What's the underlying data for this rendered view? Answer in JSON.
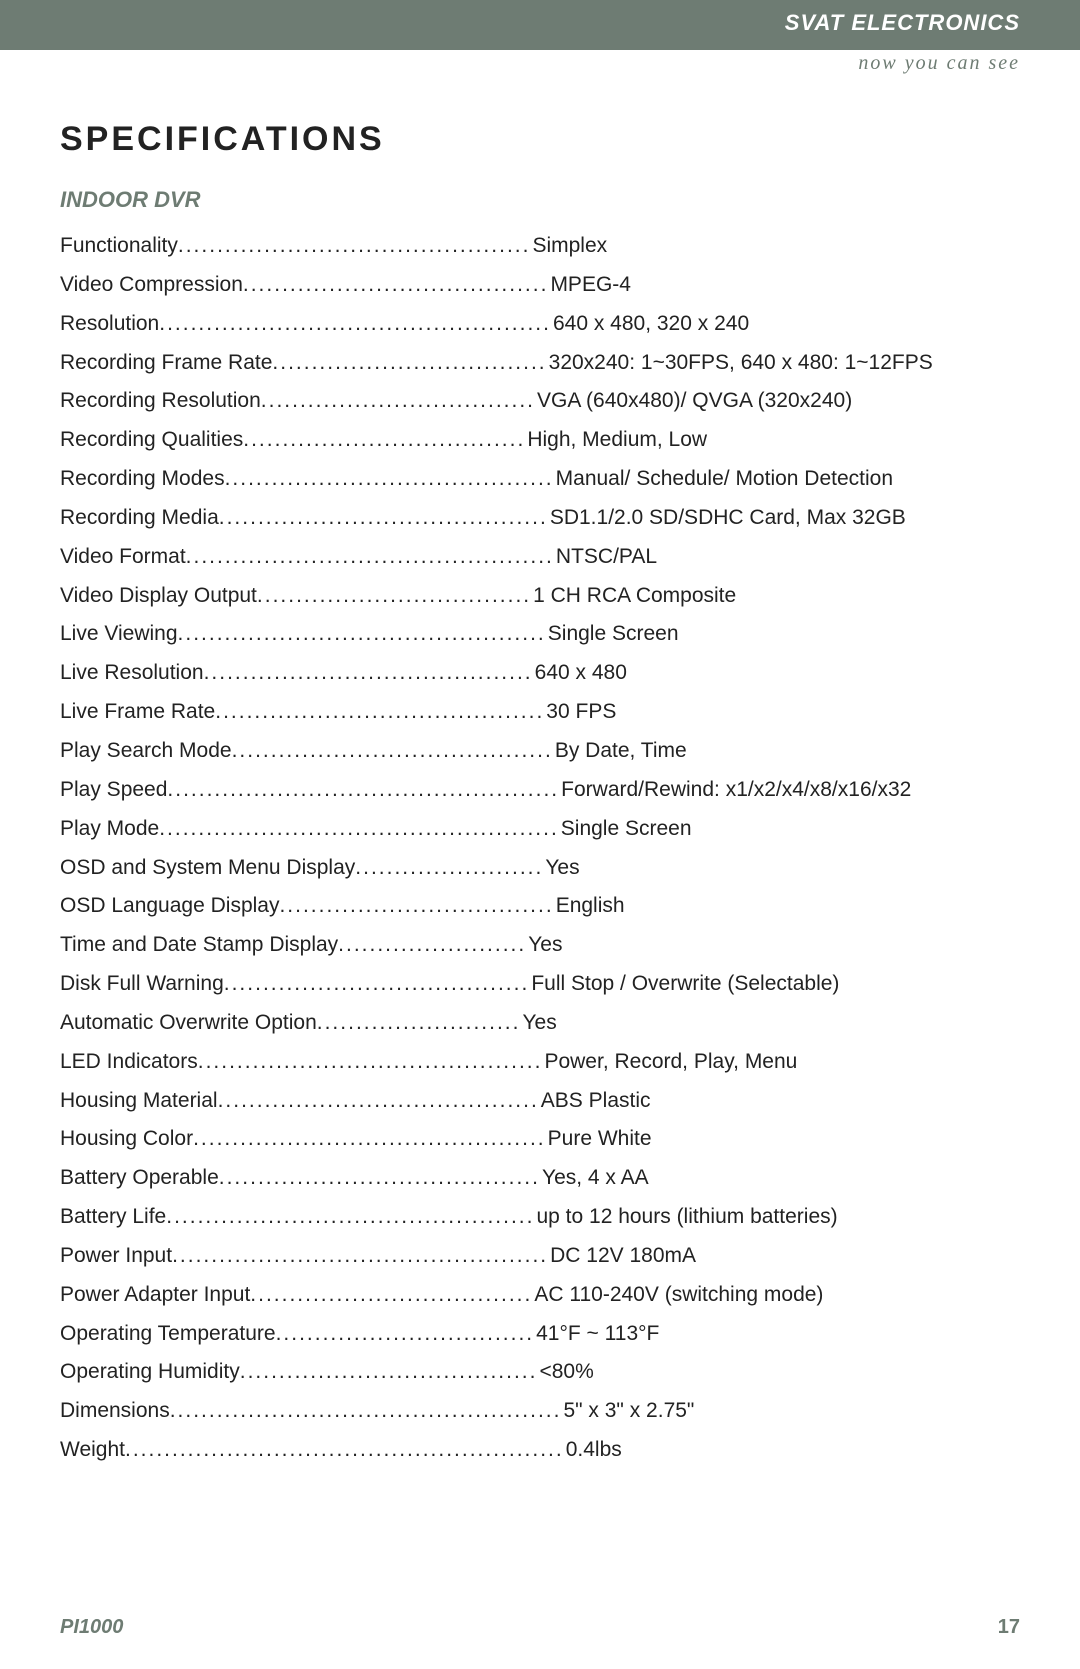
{
  "header": {
    "brand": "SVAT ELECTRONICS",
    "tagline": "now you can see"
  },
  "page_title": "SPECIFICATIONS",
  "section_title": "INDOOR DVR",
  "label_col_chars": 44,
  "specs": [
    {
      "label": "Functionality",
      "value": "Simplex"
    },
    {
      "label": "Video Compression",
      "value": "MPEG-4"
    },
    {
      "label": "Resolution",
      "value": "640 x 480, 320 x 240"
    },
    {
      "label": "Recording Frame Rate",
      "value": "320x240: 1~30FPS, 640 x 480: 1~12FPS"
    },
    {
      "label": "Recording Resolution",
      "value": "VGA (640x480)/ QVGA (320x240)"
    },
    {
      "label": "Recording Qualities",
      "value": "High, Medium, Low"
    },
    {
      "label": "Recording Modes",
      "value": "Manual/ Schedule/ Motion Detection"
    },
    {
      "label": "Recording Media",
      "value": "SD1.1/2.0 SD/SDHC Card, Max 32GB"
    },
    {
      "label": "Video Format",
      "value": "NTSC/PAL"
    },
    {
      "label": "Video Display Output",
      "value": "1 CH RCA Composite"
    },
    {
      "label": "Live Viewing",
      "value": "Single Screen"
    },
    {
      "label": "Live Resolution",
      "value": "640 x 480"
    },
    {
      "label": "Live Frame Rate",
      "value": "30 FPS"
    },
    {
      "label": "Play Search Mode",
      "value": "By Date, Time"
    },
    {
      "label": "Play Speed",
      "value": "Forward/Rewind: x1/x2/x4/x8/x16/x32"
    },
    {
      "label": "Play Mode",
      "value": "Single Screen"
    },
    {
      "label": "OSD and System Menu Display",
      "value": "Yes"
    },
    {
      "label": "OSD Language Display",
      "value": "English"
    },
    {
      "label": "Time and Date Stamp Display",
      "value": "Yes"
    },
    {
      "label": "Disk Full Warning",
      "value": "Full Stop / Overwrite (Selectable)"
    },
    {
      "label": "Automatic Overwrite Option",
      "value": "Yes"
    },
    {
      "label": "LED Indicators",
      "value": "Power, Record, Play, Menu"
    },
    {
      "label": "Housing Material",
      "value": "ABS Plastic"
    },
    {
      "label": "Housing Color",
      "value": "Pure White"
    },
    {
      "label": "Battery Operable",
      "value": "Yes, 4 x AA"
    },
    {
      "label": "Battery Life",
      "value": "up to 12 hours (lithium batteries)"
    },
    {
      "label": "Power Input",
      "value": "DC 12V 180mA"
    },
    {
      "label": "Power Adapter Input",
      "value": "AC 110-240V (switching mode)"
    },
    {
      "label": "Operating Temperature",
      "value": "41°F ~ 113°F"
    },
    {
      "label": "Operating Humidity",
      "value": "<80%"
    },
    {
      "label": "Dimensions",
      "value": "5\" x 3\" x 2.75\""
    },
    {
      "label": "Weight",
      "value": "0.4lbs"
    }
  ],
  "footer": {
    "model": "PI1000",
    "page_number": "17"
  },
  "colors": {
    "header_bg": "#6e7c73",
    "accent": "#6e7c73",
    "text": "#222222",
    "page_bg": "#ffffff"
  },
  "typography": {
    "body_font": "Arial",
    "title_size_pt": 26,
    "section_size_pt": 16,
    "body_size_pt": 16
  }
}
